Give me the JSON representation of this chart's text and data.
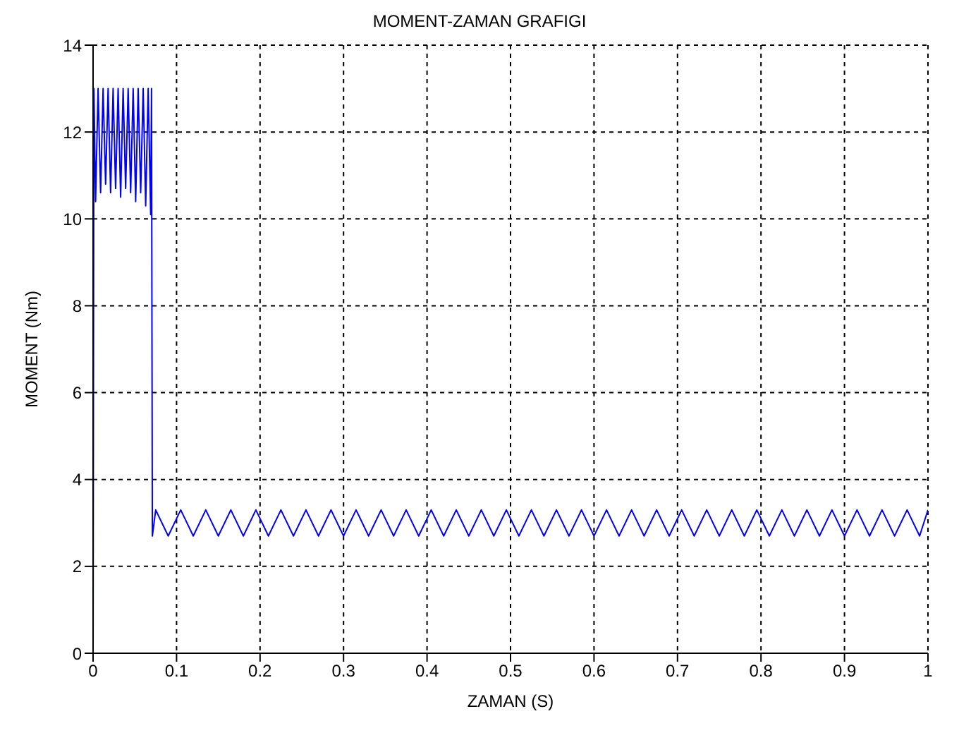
{
  "chart_data": {
    "type": "line",
    "title": "MOMENT-ZAMAN GRAFIGI",
    "xlabel": "ZAMAN (S)",
    "ylabel": "MOMENT (Nm)",
    "xlim": [
      0,
      1
    ],
    "xticks": [
      0,
      0.1,
      0.2,
      0.3,
      0.4,
      0.5,
      0.6,
      0.7,
      0.8,
      0.9,
      1
    ],
    "ylim": [
      0,
      14
    ],
    "yticks": [
      0,
      2,
      4,
      6,
      8,
      10,
      12,
      14
    ],
    "grid": true,
    "marker": "none",
    "line_style": "solid",
    "series": [
      {
        "color": "#0000ff",
        "x": [
          0,
          0.001,
          0.003,
          0.006,
          0.009,
          0.012,
          0.015,
          0.018,
          0.021,
          0.024,
          0.027,
          0.03,
          0.033,
          0.036,
          0.039,
          0.042,
          0.045,
          0.048,
          0.051,
          0.054,
          0.057,
          0.06,
          0.063,
          0.066,
          0.069,
          0.07,
          0.071,
          0.075,
          0.09,
          0.105,
          0.12,
          0.135,
          0.15,
          0.165,
          0.18,
          0.195,
          0.21,
          0.225,
          0.24,
          0.255,
          0.27,
          0.285,
          0.3,
          0.315,
          0.33,
          0.345,
          0.36,
          0.375,
          0.39,
          0.405,
          0.42,
          0.435,
          0.45,
          0.465,
          0.48,
          0.495,
          0.51,
          0.525,
          0.54,
          0.555,
          0.57,
          0.585,
          0.6,
          0.615,
          0.63,
          0.645,
          0.66,
          0.675,
          0.69,
          0.705,
          0.72,
          0.735,
          0.75,
          0.765,
          0.78,
          0.795,
          0.81,
          0.825,
          0.84,
          0.855,
          0.87,
          0.885,
          0.9,
          0.915,
          0.93,
          0.945,
          0.96,
          0.975,
          0.99,
          1
        ],
        "values": [
          0,
          13,
          10.4,
          13,
          10.6,
          13,
          10.8,
          13,
          10.6,
          13,
          10.7,
          13,
          10.5,
          13,
          10.7,
          13,
          10.6,
          13,
          10.4,
          13,
          10.6,
          13,
          10.3,
          13,
          10.1,
          13,
          2.7,
          3.3,
          2.7,
          3.3,
          2.7,
          3.3,
          2.7,
          3.3,
          2.7,
          3.3,
          2.7,
          3.3,
          2.7,
          3.3,
          2.7,
          3.3,
          2.7,
          3.3,
          2.7,
          3.3,
          2.7,
          3.3,
          2.7,
          3.3,
          2.7,
          3.3,
          2.7,
          3.3,
          2.7,
          3.3,
          2.7,
          3.3,
          2.7,
          3.3,
          2.7,
          3.3,
          2.7,
          3.3,
          2.7,
          3.3,
          2.7,
          3.3,
          2.7,
          3.3,
          2.7,
          3.3,
          2.7,
          3.3,
          2.7,
          3.3,
          2.7,
          3.3,
          2.7,
          3.3,
          2.7,
          3.3,
          2.7,
          3.3,
          2.7,
          3.3,
          2.7,
          3.3,
          2.7,
          3.3
        ]
      }
    ]
  }
}
